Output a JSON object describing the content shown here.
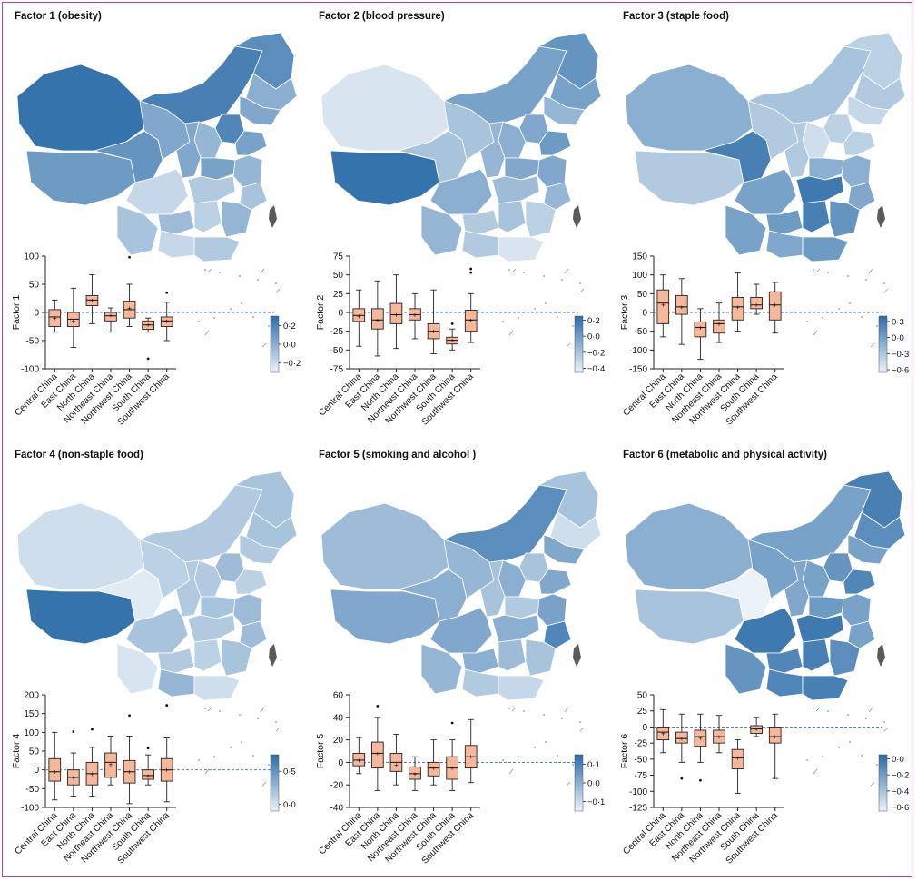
{
  "regions": [
    "Central China",
    "East China",
    "North China",
    "Northeast China",
    "Northwest China",
    "South China",
    "Southwest China"
  ],
  "colors": {
    "box_fill": "#f6b79b",
    "box_stroke": "#222222",
    "map_dark": "#2f6ea9",
    "map_light": "#e9f0f7",
    "frame": "#c43b8a",
    "taiwan": "#5a5a5a"
  },
  "chart_data": [
    {
      "type": "boxplot",
      "title": "Factor 1 (obesity)",
      "ylabel": "Factor 1",
      "yticks": [
        100,
        50,
        0,
        -50,
        -100
      ],
      "ylim": [
        -100,
        100
      ],
      "boxes": [
        {
          "q1": -25,
          "median": -8,
          "q3": 5,
          "min": -35,
          "max": 22,
          "mean": -10,
          "outliers": []
        },
        {
          "q1": -25,
          "median": -12,
          "q3": 0,
          "min": -62,
          "max": 43,
          "mean": -15,
          "outliers": []
        },
        {
          "q1": 12,
          "median": 22,
          "q3": 30,
          "min": -20,
          "max": 67,
          "mean": 22,
          "outliers": []
        },
        {
          "q1": -15,
          "median": -6,
          "q3": 0,
          "min": -35,
          "max": 8,
          "mean": -5,
          "outliers": []
        },
        {
          "q1": -10,
          "median": 5,
          "q3": 20,
          "min": -25,
          "max": 50,
          "mean": 8,
          "outliers": [
            98
          ]
        },
        {
          "q1": -30,
          "median": -22,
          "q3": -15,
          "min": -35,
          "max": -10,
          "mean": -22,
          "outliers": [
            -82
          ]
        },
        {
          "q1": -25,
          "median": -15,
          "q3": -8,
          "min": -50,
          "max": 18,
          "mean": -15,
          "outliers": [
            35
          ]
        }
      ],
      "legend_ticks": [
        0.2,
        0.0,
        -0.2
      ],
      "legend_range": [
        -0.3,
        0.3
      ]
    },
    {
      "type": "boxplot",
      "title": "Factor 2 (blood pressure)",
      "ylabel": "Factor 2",
      "yticks": [
        75,
        50,
        25,
        0,
        -25,
        -50,
        -75
      ],
      "ylim": [
        -75,
        75
      ],
      "boxes": [
        {
          "q1": -12,
          "median": -4,
          "q3": 5,
          "min": -45,
          "max": 30,
          "mean": -5,
          "outliers": []
        },
        {
          "q1": -22,
          "median": -10,
          "q3": 5,
          "min": -58,
          "max": 42,
          "mean": -10,
          "outliers": []
        },
        {
          "q1": -15,
          "median": -3,
          "q3": 12,
          "min": -48,
          "max": 50,
          "mean": -3,
          "outliers": []
        },
        {
          "q1": -10,
          "median": -3,
          "q3": 5,
          "min": -35,
          "max": 25,
          "mean": -3,
          "outliers": []
        },
        {
          "q1": -35,
          "median": -25,
          "q3": -15,
          "min": -55,
          "max": 30,
          "mean": -25,
          "outliers": []
        },
        {
          "q1": -42,
          "median": -37,
          "q3": -33,
          "min": -50,
          "max": -22,
          "mean": -37,
          "outliers": [
            -15
          ]
        },
        {
          "q1": -25,
          "median": -10,
          "q3": 3,
          "min": -40,
          "max": 25,
          "mean": -10,
          "outliers": [
            58,
            53
          ]
        }
      ],
      "legend_ticks": [
        0.2,
        0.0,
        -0.2,
        -0.4
      ],
      "legend_range": [
        -0.45,
        0.25
      ]
    },
    {
      "type": "boxplot",
      "title": "Factor 3 (staple food)",
      "ylabel": "Factor 3",
      "yticks": [
        150,
        100,
        50,
        0,
        -50,
        -100,
        -150
      ],
      "ylim": [
        -150,
        150
      ],
      "boxes": [
        {
          "q1": -30,
          "median": 25,
          "q3": 60,
          "min": -65,
          "max": 100,
          "mean": 20,
          "outliers": []
        },
        {
          "q1": -5,
          "median": 15,
          "q3": 45,
          "min": -85,
          "max": 90,
          "mean": 15,
          "outliers": []
        },
        {
          "q1": -65,
          "median": -40,
          "q3": -25,
          "min": -125,
          "max": 10,
          "mean": -40,
          "outliers": []
        },
        {
          "q1": -55,
          "median": -30,
          "q3": -20,
          "min": -80,
          "max": 25,
          "mean": -30,
          "outliers": []
        },
        {
          "q1": -20,
          "median": 15,
          "q3": 40,
          "min": -50,
          "max": 105,
          "mean": 15,
          "outliers": []
        },
        {
          "q1": 10,
          "median": 20,
          "q3": 40,
          "min": -5,
          "max": 75,
          "mean": 20,
          "outliers": []
        },
        {
          "q1": -20,
          "median": 20,
          "q3": 55,
          "min": -55,
          "max": 80,
          "mean": 20,
          "outliers": []
        }
      ],
      "legend_ticks": [
        0.3,
        0.0,
        -0.3,
        -0.6
      ],
      "legend_range": [
        -0.65,
        0.4
      ]
    },
    {
      "type": "boxplot",
      "title": "Factor 4 (non-staple food)",
      "ylabel": "Factor 4",
      "yticks": [
        200,
        150,
        100,
        50,
        0,
        -50,
        -100
      ],
      "ylim": [
        -100,
        200
      ],
      "boxes": [
        {
          "q1": -30,
          "median": -5,
          "q3": 30,
          "min": -80,
          "max": 100,
          "mean": -5,
          "outliers": []
        },
        {
          "q1": -40,
          "median": -20,
          "q3": 0,
          "min": -70,
          "max": 45,
          "mean": -20,
          "outliers": [
            102
          ]
        },
        {
          "q1": -40,
          "median": -10,
          "q3": 20,
          "min": -70,
          "max": 60,
          "mean": -10,
          "outliers": [
            108
          ]
        },
        {
          "q1": -20,
          "median": 20,
          "q3": 45,
          "min": -40,
          "max": 90,
          "mean": 15,
          "outliers": []
        },
        {
          "q1": -35,
          "median": -5,
          "q3": 25,
          "min": -90,
          "max": 90,
          "mean": -5,
          "outliers": [
            145
          ]
        },
        {
          "q1": -25,
          "median": -15,
          "q3": 0,
          "min": -40,
          "max": 40,
          "mean": -15,
          "outliers": [
            58
          ]
        },
        {
          "q1": -30,
          "median": 0,
          "q3": 30,
          "min": -85,
          "max": 85,
          "mean": 0,
          "outliers": [
            172
          ]
        }
      ],
      "legend_ticks": [
        0.5,
        0.0
      ],
      "legend_range": [
        -0.1,
        0.75
      ]
    },
    {
      "type": "boxplot",
      "title": "Factor 5 (smoking and alcohol )",
      "ylabel": "Factor 5",
      "yticks": [
        60,
        40,
        20,
        0,
        -20,
        -40
      ],
      "ylim": [
        -40,
        60
      ],
      "boxes": [
        {
          "q1": -3,
          "median": 2,
          "q3": 8,
          "min": -10,
          "max": 22,
          "mean": 2,
          "outliers": []
        },
        {
          "q1": -5,
          "median": 8,
          "q3": 18,
          "min": -25,
          "max": 40,
          "mean": 8,
          "outliers": [
            50
          ]
        },
        {
          "q1": -8,
          "median": 0,
          "q3": 8,
          "min": -20,
          "max": 25,
          "mean": -2,
          "outliers": []
        },
        {
          "q1": -15,
          "median": -10,
          "q3": -4,
          "min": -25,
          "max": 5,
          "mean": -10,
          "outliers": []
        },
        {
          "q1": -12,
          "median": -5,
          "q3": 0,
          "min": -20,
          "max": 20,
          "mean": -5,
          "outliers": []
        },
        {
          "q1": -15,
          "median": -5,
          "q3": 5,
          "min": -25,
          "max": 20,
          "mean": -5,
          "outliers": [
            35
          ]
        },
        {
          "q1": -5,
          "median": 5,
          "q3": 15,
          "min": -18,
          "max": 38,
          "mean": 5,
          "outliers": []
        }
      ],
      "legend_ticks": [
        0.1,
        0.0,
        -0.1
      ],
      "legend_range": [
        -0.15,
        0.15
      ]
    },
    {
      "type": "boxplot",
      "title": "Factor 6 (metabolic and physical activity)",
      "ylabel": "Factor 6",
      "yticks": [
        50,
        25,
        0,
        -25,
        -50,
        -75,
        -100,
        -125
      ],
      "ylim": [
        -125,
        50
      ],
      "boxes": [
        {
          "q1": -20,
          "median": -8,
          "q3": 0,
          "min": -40,
          "max": 27,
          "mean": -10,
          "outliers": []
        },
        {
          "q1": -25,
          "median": -18,
          "q3": -8,
          "min": -55,
          "max": 20,
          "mean": -18,
          "outliers": [
            -80
          ]
        },
        {
          "q1": -30,
          "median": -15,
          "q3": -5,
          "min": -55,
          "max": 20,
          "mean": -17,
          "outliers": [
            -83
          ]
        },
        {
          "q1": -25,
          "median": -15,
          "q3": -5,
          "min": -40,
          "max": 18,
          "mean": -15,
          "outliers": []
        },
        {
          "q1": -65,
          "median": -48,
          "q3": -35,
          "min": -103,
          "max": -20,
          "mean": -48,
          "outliers": []
        },
        {
          "q1": -10,
          "median": -3,
          "q3": 2,
          "min": -15,
          "max": 15,
          "mean": -3,
          "outliers": []
        },
        {
          "q1": -25,
          "median": -15,
          "q3": 0,
          "min": -80,
          "max": 20,
          "mean": -15,
          "outliers": []
        }
      ],
      "legend_ticks": [
        0.0,
        -0.2,
        -0.4,
        -0.6
      ],
      "legend_range": [
        -0.65,
        0.05
      ]
    }
  ]
}
